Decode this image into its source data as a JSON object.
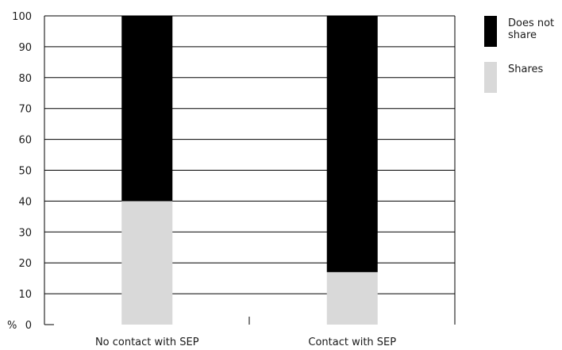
{
  "chart_data": {
    "type": "bar",
    "stacked": true,
    "categories": [
      "No contact with SEP",
      "Contact with SEP"
    ],
    "series": [
      {
        "name": "Shares",
        "values": [
          40,
          17
        ],
        "color": "#d9d9d9"
      },
      {
        "name": "Does not share",
        "values": [
          60,
          83
        ],
        "color": "#000000"
      }
    ],
    "ylim": [
      0,
      100
    ],
    "yticks": [
      0,
      10,
      20,
      30,
      40,
      50,
      60,
      70,
      80,
      90,
      100
    ],
    "y_unit_label": "%",
    "grid": true,
    "legend_placement": "right",
    "legend": [
      {
        "label_lines": [
          "Does not",
          "share"
        ],
        "color": "#000000"
      },
      {
        "label_lines": [
          "Shares"
        ],
        "color": "#d9d9d9"
      }
    ]
  }
}
